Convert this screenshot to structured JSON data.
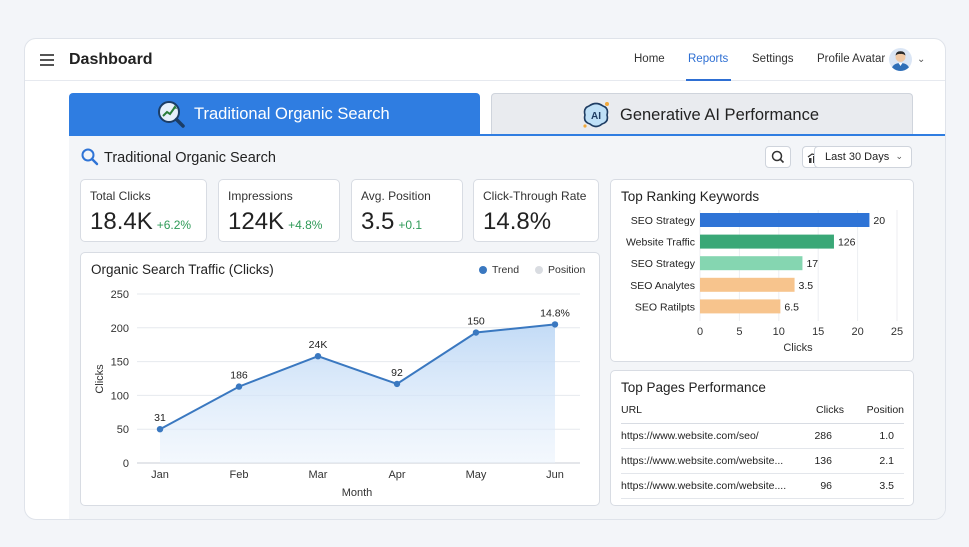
{
  "header": {
    "title": "Dashboard",
    "nav": [
      "Home",
      "Reports",
      "Settings"
    ],
    "active_nav": "Reports",
    "profile_label": "Profile Avatar"
  },
  "tabs": [
    {
      "label": "Traditional Organic Search",
      "icon": "magnifier-chart-icon",
      "active": true
    },
    {
      "label": "Generative AI Performance",
      "icon": "ai-brain-icon",
      "active": false
    }
  ],
  "section": {
    "title": "Traditional Organic Search",
    "date_range": "Last 30 Days"
  },
  "kpis": [
    {
      "label": "Total Clicks",
      "value": "18.4K",
      "delta": "+6.2%"
    },
    {
      "label": "Impressions",
      "value": "124K",
      "delta": "+4.8%"
    },
    {
      "label": "Avg. Position",
      "value": "3.5",
      "delta": "+0.1"
    },
    {
      "label": "Click-Through Rate",
      "value": "14.8%",
      "delta": ""
    }
  ],
  "traffic_card": {
    "title": "Organic Search Traffic (Clicks)",
    "legend": [
      "Trend",
      "Position"
    ]
  },
  "keywords_card": {
    "title": "Top Ranking Keywords"
  },
  "pages_card": {
    "title": "Top Pages Performance",
    "columns": [
      "URL",
      "Clicks",
      "Position"
    ],
    "rows": [
      [
        "https://www.website.com/seo/",
        "286",
        "1.0"
      ],
      [
        "https://www.website.com/website...",
        "136",
        "2.1"
      ],
      [
        "https://www.website.com/website....",
        "96",
        "3.5"
      ]
    ]
  },
  "colors": {
    "accent": "#2f7de1",
    "positive": "#2f9a58",
    "line": "#3a78c0",
    "bar_blue": "#2f74d6",
    "bar_green": "#3aa877",
    "bar_light_green": "#85d6b1",
    "bar_orange": "#f7c48d"
  },
  "chart_data": [
    {
      "type": "area",
      "title": "Organic Search Traffic (Clicks)",
      "xlabel": "Month",
      "ylabel": "Clicks",
      "categories": [
        "Jan",
        "Feb",
        "Mar",
        "Apr",
        "May",
        "Jun"
      ],
      "series": [
        {
          "name": "Trend",
          "values": [
            50,
            113,
            158,
            117,
            193,
            205
          ]
        }
      ],
      "data_labels": [
        "31",
        "186",
        "24K",
        "92",
        "150",
        "14.8%"
      ],
      "ylim": [
        0,
        250
      ],
      "yticks": [
        0,
        50,
        100,
        150,
        200,
        250
      ],
      "grid": true,
      "legend": "top-right"
    },
    {
      "type": "bar",
      "orientation": "horizontal",
      "title": "Top Ranking Keywords",
      "xlabel": "Clicks",
      "categories": [
        "SEO Strategy",
        "Website Traffic",
        "SEO Strategy",
        "SEO Analytes",
        "SEO Ratilpts"
      ],
      "values": [
        21.5,
        17,
        13,
        12,
        10.2
      ],
      "data_labels": [
        "20",
        "126",
        "17",
        "3.5",
        "6.5"
      ],
      "xlim": [
        0,
        25
      ],
      "xticks": [
        0,
        5,
        10,
        15,
        20,
        25
      ]
    }
  ]
}
